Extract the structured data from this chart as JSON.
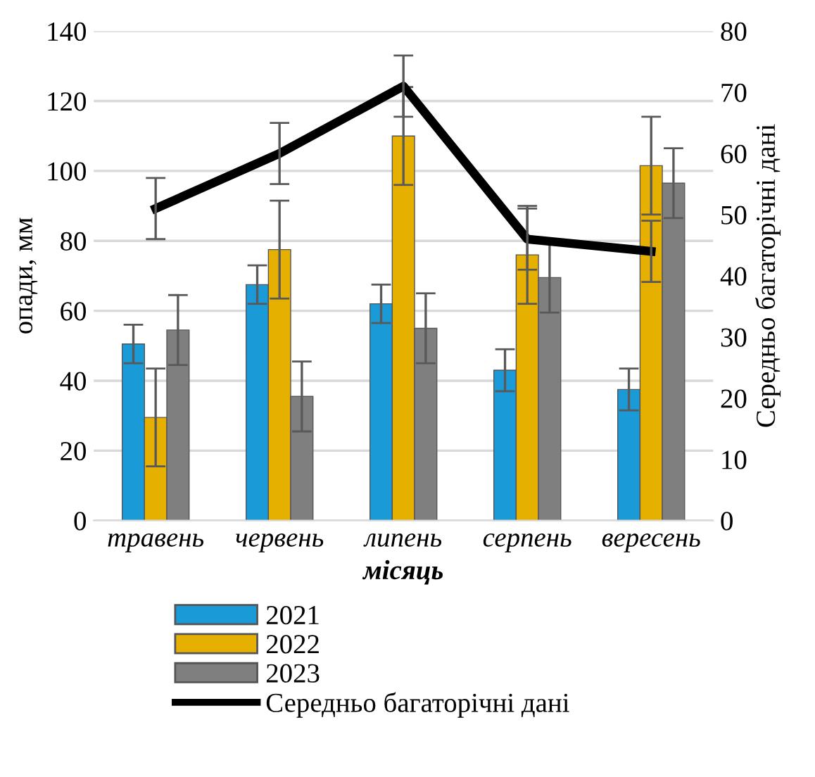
{
  "chart_data": {
    "type": "bar",
    "xlabel": "місяць",
    "ylabel": "опади, мм",
    "y2label": "Середньо багаторічні дані",
    "categories": [
      "травень",
      "червень",
      "липень",
      "серпень",
      "вересень"
    ],
    "series": [
      {
        "name": "2021",
        "color": "#1a9ad6",
        "values": [
          50.5,
          67.5,
          62,
          43,
          37.5
        ],
        "errors": [
          5.5,
          5.5,
          5.5,
          6,
          6
        ]
      },
      {
        "name": "2022",
        "color": "#e6b000",
        "values": [
          29.5,
          77.5,
          110,
          76,
          101.5
        ],
        "errors": [
          14,
          14,
          14,
          14,
          14
        ]
      },
      {
        "name": "2023",
        "color": "#7f7f7f",
        "values": [
          54.5,
          35.5,
          55,
          69.5,
          96.5
        ],
        "errors": [
          10,
          10,
          10,
          10,
          10
        ]
      },
      {
        "name": "Середньо багаторічні дані",
        "type": "line",
        "axis": "y2",
        "color": "#000000",
        "values": [
          51,
          60,
          71,
          46,
          44
        ],
        "errors": [
          5,
          5,
          5,
          5,
          5
        ]
      }
    ],
    "ylim": [
      0,
      140
    ],
    "yticks": [
      0,
      20,
      40,
      60,
      80,
      100,
      120,
      140
    ],
    "y2lim": [
      0,
      80
    ],
    "y2ticks": [
      0,
      10,
      20,
      30,
      40,
      50,
      60,
      70,
      80
    ],
    "grid": "y",
    "legend": "bottom",
    "marker": "none",
    "line_style": "solid"
  }
}
